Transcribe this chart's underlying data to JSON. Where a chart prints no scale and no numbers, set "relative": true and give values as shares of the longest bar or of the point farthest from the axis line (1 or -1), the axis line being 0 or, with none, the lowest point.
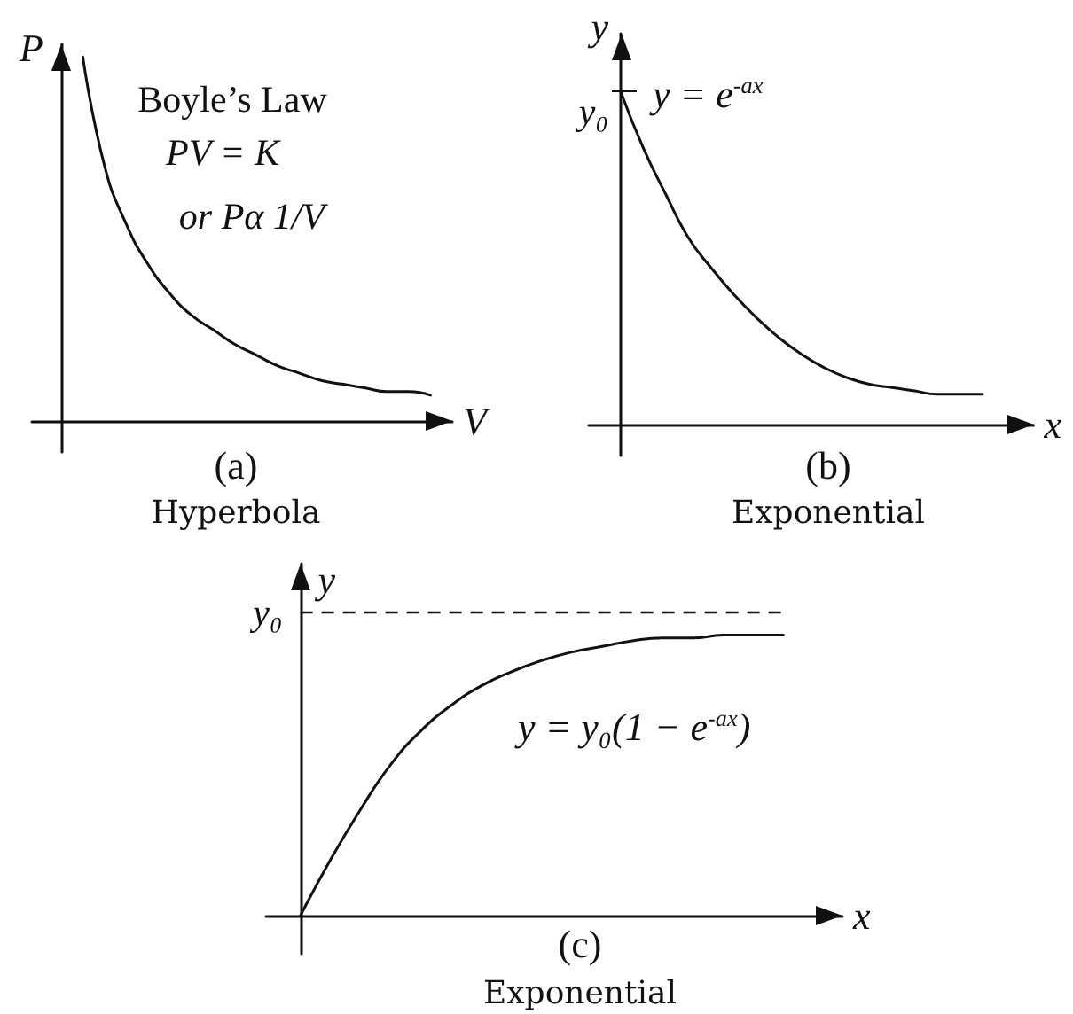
{
  "chart_data": [
    {
      "type": "line",
      "title": "(a)",
      "subtitle": "Hyperbola",
      "xlabel": "V",
      "ylabel": "P",
      "annotations": [
        "Boyle’s Law",
        "PV = K",
        "or Pα 1/V"
      ],
      "categories": [
        null,
        null,
        null,
        null,
        null,
        null,
        null,
        null,
        null,
        null,
        null,
        null,
        null,
        null,
        null,
        null,
        null,
        null
      ],
      "values": [
        null,
        1,
        0.7,
        0.54,
        0.43,
        0.35,
        0.29,
        0.25,
        0.21,
        0.18,
        0.15,
        0.13,
        0.11,
        0.1,
        0.09,
        0.08,
        0.08,
        0.07
      ],
      "color": "#111111",
      "relative": true
    },
    {
      "type": "line",
      "title": "(b)",
      "subtitle": "Exponential",
      "xlabel": "x",
      "ylabel": "y",
      "annotations": [
        "y₀",
        "y = e$^{-ax}$"
      ],
      "categories": [
        null,
        null,
        null,
        null,
        null,
        null,
        null,
        null,
        null,
        null,
        null,
        null,
        null,
        null,
        null,
        null,
        null
      ],
      "values": [
        1,
        0.83,
        0.69,
        0.56,
        0.47,
        0.39,
        0.32,
        0.26,
        0.21,
        0.17,
        0.14,
        0.12,
        0.11,
        0.1,
        0.09,
        0.09,
        0.09
      ],
      "color": "#111111",
      "relative": true
    },
    {
      "type": "line",
      "title": "(c)",
      "subtitle": "Exponential",
      "xlabel": "x",
      "ylabel": "y",
      "annotations": [
        "y = y₀(1 − e$^{-ax}$)"
      ],
      "categories": [
        null,
        null,
        null,
        null,
        null,
        null,
        null,
        null,
        null,
        null,
        null,
        null,
        null,
        null,
        null,
        null,
        null
      ],
      "values": [
        0,
        0.2,
        0.38,
        0.54,
        0.66,
        0.75,
        0.82,
        0.87,
        0.91,
        0.94,
        0.96,
        0.98,
        0.99,
        0.99,
        1,
        1,
        1
      ],
      "color": "#111111",
      "relative": true,
      "ref_lines": [
        {
          "axis": "y",
          "value": 1.08,
          "label": "y₀",
          "line_style": "dashed",
          "color": "#111111"
        }
      ]
    }
  ]
}
